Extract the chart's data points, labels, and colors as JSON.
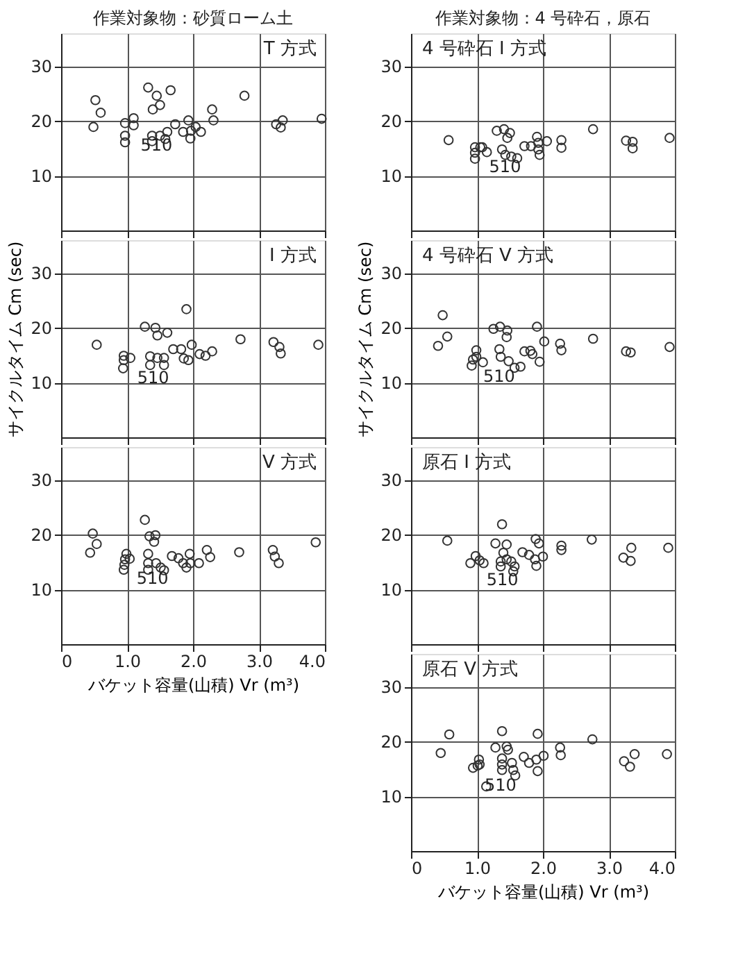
{
  "chart_data": [
    {
      "type": "scatter",
      "title": "T 方式",
      "annotations": [
        "作業対象物：砂質ローム土",
        {
          "text": "510",
          "x": 1.1,
          "y": 19.2
        }
      ],
      "marker": "circle",
      "color": "#333333",
      "grid": true,
      "tick_labels": "y",
      "xlim": [
        0,
        4
      ],
      "ylim": [
        0,
        36
      ],
      "xticks": [
        {
          "value": 0,
          "label": null
        },
        {
          "value": 1,
          "label": null
        },
        {
          "value": 2,
          "label": null
        },
        {
          "value": 3,
          "label": null
        },
        {
          "value": 4,
          "label": null
        }
      ],
      "yticks": [
        10,
        20,
        30
      ],
      "x": [
        0.52,
        0.6,
        0.49,
        0.97,
        1.1,
        1.1,
        0.97,
        0.97,
        1.32,
        1.45,
        1.5,
        1.66,
        1.39,
        1.38,
        1.38,
        1.5,
        1.58,
        1.61,
        1.73,
        1.85,
        1.93,
        1.97,
        1.96,
        2.04,
        2.12,
        2.29,
        2.31,
        2.78,
        3.26,
        3.36,
        3.33,
        3.95
      ],
      "values": [
        23.8,
        21.5,
        18.9,
        19.6,
        20.5,
        19.2,
        17.3,
        16.1,
        26.1,
        24.6,
        22.9,
        25.6,
        22.1,
        17.3,
        16.3,
        17.3,
        16.7,
        18,
        19.4,
        18,
        20.1,
        18.2,
        16.8,
        18.9,
        18,
        22.1,
        20.1,
        24.6,
        19.4,
        20.1,
        18.8,
        20.4
      ]
    },
    {
      "type": "scatter",
      "title": "I 方式",
      "ylabel": "サイクルタイム Cm (sec)",
      "annotations": [
        {
          "text": "510",
          "x": 1.05,
          "y": 14.5
        }
      ],
      "marker": "circle",
      "color": "#333333",
      "grid": true,
      "tick_labels": "y",
      "xlim": [
        0,
        4
      ],
      "ylim": [
        0,
        36
      ],
      "xticks": [
        {
          "value": 0,
          "label": null
        },
        {
          "value": 1,
          "label": null
        },
        {
          "value": 2,
          "label": null
        },
        {
          "value": 3,
          "label": null
        },
        {
          "value": 4,
          "label": null
        }
      ],
      "yticks": [
        10,
        20,
        30
      ],
      "x": [
        0.54,
        1.9,
        1.27,
        1.43,
        1.46,
        1.61,
        0.95,
        0.95,
        0.94,
        1.05,
        1.35,
        1.35,
        1.46,
        1.56,
        1.56,
        1.7,
        1.82,
        1.86,
        1.93,
        1.98,
        2.1,
        2.19,
        2.29,
        2.72,
        3.22,
        3.31,
        3.33,
        3.9
      ],
      "values": [
        16.9,
        23.4,
        20.2,
        20,
        18.6,
        19.1,
        14.9,
        14.1,
        12.6,
        14.5,
        14.8,
        13.2,
        14.5,
        14.5,
        13.2,
        16.1,
        16.1,
        14.4,
        14.1,
        16.9,
        15.2,
        14.9,
        15.7,
        17.9,
        17.4,
        16.5,
        15.3,
        16.9
      ]
    },
    {
      "type": "scatter",
      "title": "V 方式",
      "xlabel": "バケット容量(山積) Vr (m³)",
      "annotations": [
        {
          "text": "510",
          "x": 1.04,
          "y": 15.6
        }
      ],
      "marker": "circle",
      "color": "#333333",
      "grid": true,
      "xlim": [
        0,
        4
      ],
      "ylim": [
        0,
        36
      ],
      "xticks": [
        0,
        {
          "value": 1,
          "label": "1.0"
        },
        {
          "value": 2,
          "label": "2.0"
        },
        {
          "value": 3,
          "label": "3.0"
        },
        {
          "value": 4,
          "label": "4.0"
        }
      ],
      "yticks": [
        10,
        20,
        30
      ],
      "x": [
        0.48,
        0.54,
        0.44,
        0.99,
        0.97,
        0.96,
        0.95,
        1.04,
        1.27,
        1.34,
        1.43,
        1.41,
        1.32,
        1.32,
        1.32,
        1.44,
        1.51,
        1.56,
        1.68,
        1.78,
        1.85,
        1.9,
        1.95,
        1.96,
        2.09,
        2.21,
        2.26,
        2.7,
        3.21,
        3.24,
        3.3,
        3.86
      ],
      "values": [
        20.2,
        18.3,
        16.7,
        16.5,
        15.5,
        14.5,
        13.6,
        15.6,
        22.7,
        19.7,
        19.9,
        18.7,
        16.5,
        14.8,
        13.6,
        14.8,
        14,
        13.5,
        16.1,
        15.7,
        14.8,
        14,
        16.5,
        14.8,
        14.8,
        17.2,
        15.9,
        16.8,
        17.2,
        16,
        14.8,
        18.6
      ]
    },
    {
      "type": "scatter",
      "title": "4 号砕石 I 方式",
      "annotations": [
        "作業対象物：4 号砕石，原石",
        {
          "text": "510",
          "x": 1.08,
          "y": 15.2
        }
      ],
      "marker": "circle",
      "color": "#333333",
      "grid": true,
      "tick_labels": "y",
      "xlim": [
        0,
        4
      ],
      "ylim": [
        0,
        36
      ],
      "xticks": [
        {
          "value": 0,
          "label": null
        },
        {
          "value": 1,
          "label": null
        },
        {
          "value": 2,
          "label": null
        },
        {
          "value": 3,
          "label": null
        },
        {
          "value": 4,
          "label": null
        }
      ],
      "yticks": [
        10,
        20,
        30
      ],
      "x": [
        0.57,
        0.97,
        0.97,
        0.97,
        1.05,
        1.08,
        1.15,
        1.3,
        1.41,
        1.5,
        1.46,
        1.38,
        1.43,
        1.52,
        1.61,
        1.72,
        1.82,
        1.91,
        1.93,
        1.93,
        1.95,
        2.06,
        2.28,
        2.28,
        2.76,
        3.26,
        3.36,
        3.36,
        3.92
      ],
      "values": [
        16.5,
        15.2,
        14.2,
        13.1,
        15.2,
        15.2,
        14.3,
        18.2,
        18.5,
        17.8,
        16.9,
        14.8,
        13.8,
        13.5,
        13.2,
        15.4,
        15.4,
        17.1,
        16,
        14.8,
        13.8,
        16.3,
        16.5,
        15.1,
        18.5,
        16.4,
        16.2,
        15,
        16.9
      ]
    },
    {
      "type": "scatter",
      "title": "4 号砕石 V 方式",
      "ylabel": "サイクルタイム Cm (sec)",
      "annotations": [
        {
          "text": "510",
          "x": 0.99,
          "y": 14.7
        }
      ],
      "marker": "circle",
      "color": "#333333",
      "grid": true,
      "tick_labels": "y",
      "xlim": [
        0,
        4
      ],
      "ylim": [
        0,
        36
      ],
      "xticks": [
        {
          "value": 0,
          "label": null
        },
        {
          "value": 1,
          "label": null
        },
        {
          "value": 2,
          "label": null
        },
        {
          "value": 3,
          "label": null
        },
        {
          "value": 4,
          "label": null
        }
      ],
      "yticks": [
        10,
        20,
        30
      ],
      "x": [
        0.48,
        0.55,
        0.41,
        0.99,
        0.94,
        0.92,
        0.99,
        1.09,
        1.25,
        1.35,
        1.46,
        1.45,
        1.34,
        1.36,
        1.48,
        1.57,
        1.66,
        1.72,
        1.81,
        1.84,
        1.95,
        1.91,
        2.02,
        2.26,
        2.28,
        2.76,
        3.26,
        3.33,
        3.92
      ],
      "values": [
        22.3,
        18.4,
        16.7,
        15.9,
        14.2,
        13.1,
        14.7,
        13.7,
        19.8,
        20.2,
        19.5,
        18.3,
        16.1,
        14.7,
        13.9,
        12.7,
        12.9,
        15.7,
        15.8,
        15.2,
        13.8,
        20.2,
        17.5,
        17.1,
        15.9,
        18,
        15.7,
        15.5,
        16.5
      ]
    },
    {
      "type": "scatter",
      "title": "原石 I 方式",
      "annotations": [
        {
          "text": "510",
          "x": 1.04,
          "y": 15.3
        }
      ],
      "marker": "circle",
      "color": "#333333",
      "grid": true,
      "tick_labels": "y",
      "xlim": [
        0,
        4
      ],
      "ylim": [
        0,
        36
      ],
      "xticks": [
        {
          "value": 0,
          "label": null
        },
        {
          "value": 1,
          "label": null
        },
        {
          "value": 2,
          "label": null
        },
        {
          "value": 3,
          "label": null
        },
        {
          "value": 4,
          "label": null
        }
      ],
      "yticks": [
        10,
        20,
        30
      ],
      "x": [
        0.55,
        0.98,
        1.04,
        0.9,
        1.1,
        1.38,
        1.28,
        1.45,
        1.4,
        1.45,
        1.36,
        1.36,
        1.52,
        1.57,
        1.55,
        1.69,
        1.79,
        1.89,
        1.94,
        1.88,
        1.9,
        2.0,
        2.28,
        2.28,
        2.74,
        3.22,
        3.34,
        3.33,
        3.9
      ],
      "values": [
        18.9,
        16.1,
        15.3,
        14.8,
        14.8,
        21.9,
        18.4,
        18.2,
        16.7,
        15.5,
        15.1,
        14.2,
        15.1,
        14.2,
        13.3,
        16.8,
        16.3,
        19.2,
        18.4,
        15.5,
        14.3,
        16,
        18,
        17.2,
        19.1,
        15.8,
        17.6,
        15.2,
        17.6
      ]
    },
    {
      "type": "scatter",
      "title": "原石 V 方式",
      "xlabel": "バケット容量(山積) Vr (m³)",
      "annotations": [
        {
          "text": "510",
          "x": 1.01,
          "y": 15.6
        }
      ],
      "marker": "circle",
      "color": "#333333",
      "grid": true,
      "xlim": [
        0,
        4
      ],
      "ylim": [
        0,
        36
      ],
      "xticks": [
        0,
        {
          "value": 1,
          "label": "1.0"
        },
        {
          "value": 2,
          "label": "2.0"
        },
        {
          "value": 3,
          "label": "3.0"
        },
        {
          "value": 4,
          "label": "4.0"
        }
      ],
      "yticks": [
        10,
        20,
        30
      ],
      "x": [
        0.45,
        0.58,
        0.94,
        1.03,
        1.01,
        1.04,
        1.14,
        1.28,
        1.38,
        1.38,
        1.38,
        1.45,
        1.47,
        1.38,
        1.53,
        1.55,
        1.58,
        1.71,
        1.79,
        1.9,
        1.92,
        1.92,
        2.01,
        2.26,
        2.27,
        2.75,
        3.23,
        3.32,
        3.39,
        3.88
      ],
      "values": [
        17.9,
        21.3,
        15.2,
        16.7,
        15.6,
        15.8,
        11.8,
        18.9,
        21.9,
        16.9,
        14.8,
        19.1,
        18.5,
        15.8,
        16.1,
        14.8,
        13.8,
        17.2,
        16.1,
        16.7,
        21.4,
        14.6,
        17.4,
        18.9,
        17.5,
        20.4,
        16.4,
        15.4,
        17.7,
        17.7
      ]
    }
  ]
}
